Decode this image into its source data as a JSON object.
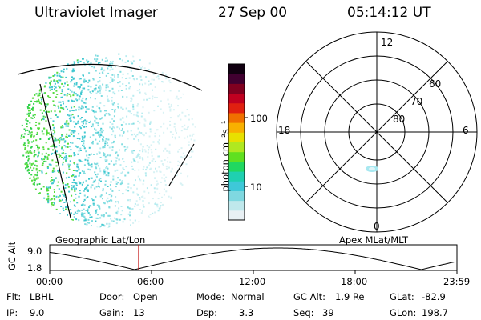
{
  "header": {
    "instrument": "Ultraviolet Imager",
    "date": "27 Sep 00",
    "time": "05:14:12 UT"
  },
  "colorbar": {
    "unit_label": "photon cm⁻²s⁻¹",
    "ticks": [
      "10",
      "100"
    ],
    "colors": [
      "#e8f0f4",
      "#bfe8ec",
      "#7fd8e0",
      "#3ec8d8",
      "#1fd0b0",
      "#20d860",
      "#60e020",
      "#b0e820",
      "#e8e000",
      "#f8b000",
      "#f07000",
      "#e02010",
      "#c00020",
      "#800020",
      "#400030",
      "#100010"
    ]
  },
  "polar_plot": {
    "mlt_labels": {
      "top": "12",
      "left": "18",
      "right": "6",
      "bottom": "0"
    },
    "lat_labels": [
      "60",
      "70",
      "80"
    ]
  },
  "orbit_plot": {
    "left_title": "Geographic Lat/Lon",
    "right_title": "Apex MLat/MLT",
    "axis_label": "GC Alt",
    "y_ticks": [
      "9.0",
      "1.8"
    ],
    "x_ticks": [
      "00:00",
      "06:00",
      "12:00",
      "18:00",
      "23:59"
    ],
    "current_time_hours": 5.24,
    "marker_color": "#c00000"
  },
  "info": {
    "flt_label": "Flt:",
    "flt_value": "LBHL",
    "ip_label": "IP:",
    "ip_value": "9.0",
    "door_label": "Door:",
    "door_value": "Open",
    "gain_label": "Gain:",
    "gain_value": "13",
    "mode_label": "Mode:",
    "mode_value": "Normal",
    "dsp_label": "Dsp:",
    "dsp_value": "3.3",
    "gcalt_label": "GC Alt:",
    "gcalt_value": "1.9 Re",
    "seq_label": "Seq:",
    "seq_value": "39",
    "glat_label": "GLat:",
    "glat_value": "-82.9",
    "glon_label": "GLon:",
    "glon_value": "198.7"
  }
}
